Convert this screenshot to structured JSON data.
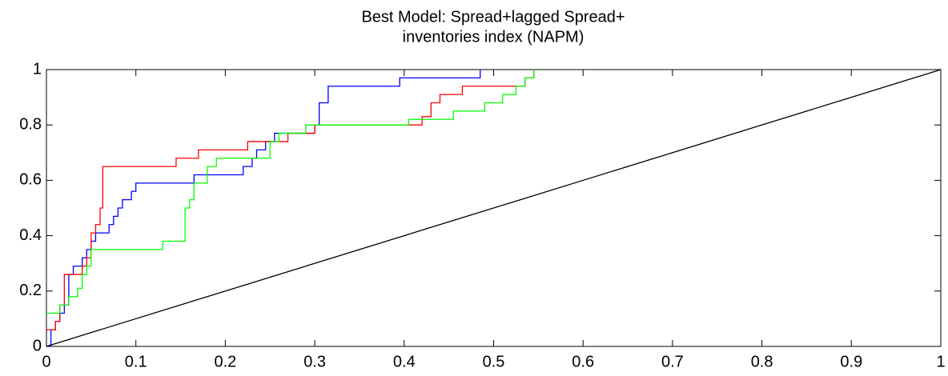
{
  "chart_data": {
    "type": "line",
    "title": [
      "Best Model: Spread+lagged Spread+",
      "inventories index (NAPM)"
    ],
    "xlim": [
      0,
      1
    ],
    "ylim": [
      0,
      1
    ],
    "xticks": [
      0,
      0.1,
      0.2,
      0.3,
      0.4,
      0.5,
      0.6,
      0.7,
      0.8,
      0.9,
      1
    ],
    "yticks": [
      0,
      0.2,
      0.4,
      0.6,
      0.8,
      1
    ],
    "grid": false,
    "series": [
      {
        "color": "#0000ff",
        "x": [
          0,
          0.005,
          0.005,
          0.01,
          0.01,
          0.015,
          0.015,
          0.02,
          0.02,
          0.025,
          0.025,
          0.03,
          0.03,
          0.04,
          0.04,
          0.045,
          0.045,
          0.05,
          0.05,
          0.055,
          0.055,
          0.07,
          0.07,
          0.075,
          0.075,
          0.08,
          0.08,
          0.085,
          0.085,
          0.095,
          0.095,
          0.1,
          0.1,
          0.165,
          0.165,
          0.22,
          0.22,
          0.23,
          0.23,
          0.235,
          0.235,
          0.245,
          0.245,
          0.255,
          0.255,
          0.3,
          0.3,
          0.305,
          0.305,
          0.315,
          0.315,
          0.395,
          0.395,
          0.485,
          0.485
        ],
        "values": [
          0,
          0,
          0.06,
          0.06,
          0.09,
          0.09,
          0.12,
          0.12,
          0.15,
          0.15,
          0.26,
          0.26,
          0.29,
          0.29,
          0.32,
          0.32,
          0.35,
          0.35,
          0.38,
          0.38,
          0.41,
          0.41,
          0.44,
          0.44,
          0.47,
          0.47,
          0.5,
          0.5,
          0.53,
          0.53,
          0.56,
          0.56,
          0.59,
          0.59,
          0.62,
          0.62,
          0.65,
          0.65,
          0.68,
          0.68,
          0.71,
          0.71,
          0.74,
          0.74,
          0.77,
          0.77,
          0.8,
          0.8,
          0.88,
          0.88,
          0.94,
          0.94,
          0.97,
          0.97,
          1
        ]
      },
      {
        "color": "#ff0000",
        "x": [
          0,
          0.01,
          0.01,
          0.015,
          0.015,
          0.02,
          0.02,
          0.04,
          0.04,
          0.045,
          0.045,
          0.05,
          0.05,
          0.055,
          0.055,
          0.06,
          0.06,
          0.063,
          0.063,
          0.145,
          0.145,
          0.17,
          0.17,
          0.225,
          0.225,
          0.27,
          0.27,
          0.3,
          0.3,
          0.42,
          0.42,
          0.43,
          0.43,
          0.44,
          0.44,
          0.465,
          0.465,
          0.535,
          0.535,
          0.545,
          0.545
        ],
        "values": [
          0.06,
          0.06,
          0.09,
          0.09,
          0.15,
          0.15,
          0.26,
          0.26,
          0.29,
          0.29,
          0.32,
          0.32,
          0.41,
          0.41,
          0.44,
          0.44,
          0.5,
          0.5,
          0.65,
          0.65,
          0.68,
          0.68,
          0.71,
          0.71,
          0.74,
          0.74,
          0.77,
          0.77,
          0.8,
          0.8,
          0.83,
          0.83,
          0.88,
          0.88,
          0.91,
          0.91,
          0.94,
          0.94,
          0.97,
          0.97,
          1
        ]
      },
      {
        "color": "#00ff00",
        "x": [
          0,
          0.015,
          0.015,
          0.025,
          0.025,
          0.035,
          0.035,
          0.04,
          0.04,
          0.045,
          0.045,
          0.05,
          0.05,
          0.13,
          0.13,
          0.155,
          0.155,
          0.16,
          0.16,
          0.165,
          0.165,
          0.18,
          0.18,
          0.19,
          0.19,
          0.25,
          0.25,
          0.26,
          0.26,
          0.29,
          0.29,
          0.405,
          0.405,
          0.455,
          0.455,
          0.49,
          0.49,
          0.51,
          0.51,
          0.525,
          0.525,
          0.535,
          0.535,
          0.545,
          0.545
        ],
        "values": [
          0.12,
          0.12,
          0.15,
          0.15,
          0.18,
          0.18,
          0.21,
          0.21,
          0.26,
          0.26,
          0.29,
          0.29,
          0.35,
          0.35,
          0.38,
          0.38,
          0.5,
          0.5,
          0.53,
          0.53,
          0.59,
          0.59,
          0.65,
          0.65,
          0.68,
          0.68,
          0.74,
          0.74,
          0.77,
          0.77,
          0.8,
          0.8,
          0.82,
          0.82,
          0.85,
          0.85,
          0.88,
          0.88,
          0.91,
          0.91,
          0.94,
          0.94,
          0.97,
          0.97,
          1
        ]
      },
      {
        "color": "#000000",
        "x": [
          0,
          1
        ],
        "values": [
          0,
          1
        ]
      }
    ]
  }
}
